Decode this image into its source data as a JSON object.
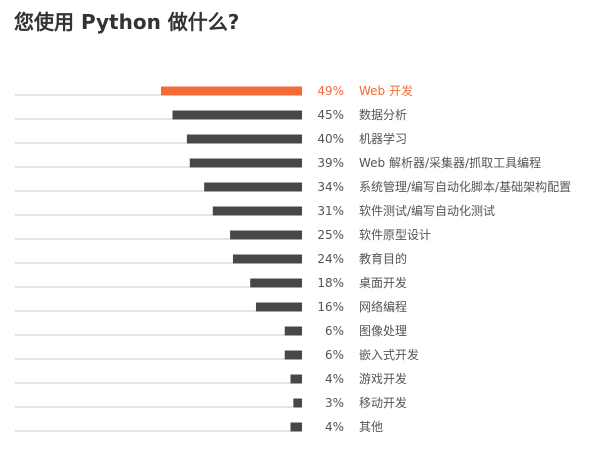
{
  "title": "您使用 Python 做什么?",
  "colors": {
    "highlight": "#f26b38",
    "bar": "#474747",
    "text": "#555555",
    "highlight_text": "#f26b38",
    "baseline": "#c8c8c8"
  },
  "chart_data": {
    "type": "bar",
    "orientation": "horizontal",
    "title": "您使用 Python 做什么?",
    "xlabel": "",
    "ylabel": "",
    "xlim": [
      0,
      49
    ],
    "grid": false,
    "legend": "none",
    "highlight_index": 0,
    "categories": [
      "Web 开发",
      "数据分析",
      "机器学习",
      "Web 解析器/采集器/抓取工具编程",
      "系统管理/编写自动化脚本/基础架构配置",
      "软件测试/编写自动化测试",
      "软件原型设计",
      "教育目的",
      "桌面开发",
      "网络编程",
      "图像处理",
      "嵌入式开发",
      "游戏开发",
      "移动开发",
      "其他"
    ],
    "values": [
      49,
      45,
      40,
      39,
      34,
      31,
      25,
      24,
      18,
      16,
      6,
      6,
      4,
      3,
      4
    ],
    "value_labels": [
      "49%",
      "45%",
      "40%",
      "39%",
      "34%",
      "31%",
      "25%",
      "24%",
      "18%",
      "16%",
      "6%",
      "6%",
      "4%",
      "3%",
      "4%"
    ]
  }
}
